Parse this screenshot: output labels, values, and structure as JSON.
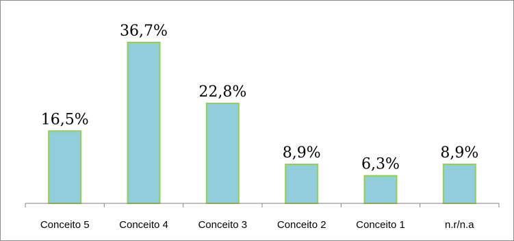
{
  "chart_data": {
    "type": "bar",
    "categories": [
      "Conceito 5",
      "Conceito 4",
      "Conceito 3",
      "Conceito 2",
      "Conceito 1",
      "n.r/n.a"
    ],
    "values": [
      16.5,
      36.7,
      22.8,
      8.9,
      6.3,
      8.9
    ],
    "value_labels": [
      "16,5%",
      "36,7%",
      "22,8%",
      "8,9%",
      "6,3%",
      "8,9%"
    ],
    "title": "",
    "xlabel": "",
    "ylabel": "",
    "ylim": [
      0,
      36.7
    ],
    "grid": false,
    "legend": "none",
    "colors": {
      "bar_fill": "#92cddc",
      "bar_border": "#92d050",
      "axis": "#808080"
    }
  }
}
